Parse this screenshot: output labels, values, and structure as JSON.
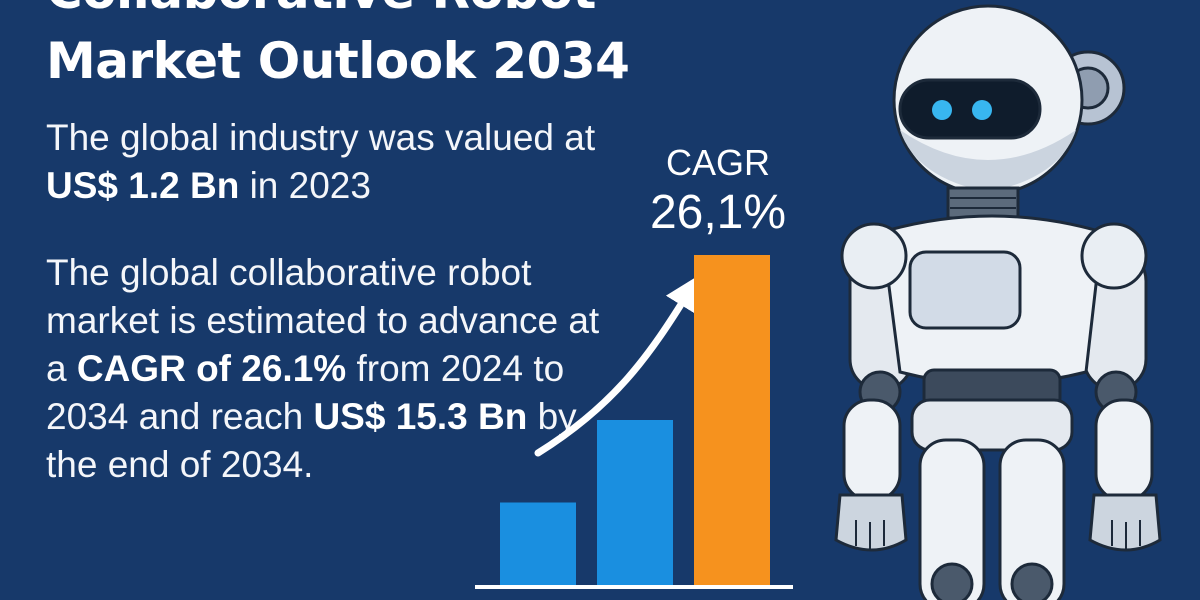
{
  "header": {
    "title_line1": "Collaborative Robot",
    "title_line2": "Market Outlook 2034"
  },
  "intro": {
    "part1": "The global industry was valued at ",
    "value": "US$ 1.2 Bn",
    "part2": " in 2023"
  },
  "forecast": {
    "part1": "The global collaborative robot market is estimated to advance at a ",
    "cagr_text": "CAGR of 26.1%",
    "part2": " from 2024 to 2034 and reach ",
    "value": "US$ 15.3 Bn",
    "part3": " by the end of 2034."
  },
  "colors": {
    "background": "#17396a",
    "bar_blue": "#1a8fe0",
    "bar_orange": "#f6921e",
    "text": "#ffffff"
  },
  "icons": [
    "trend-arrow-icon",
    "robot-illustration"
  ],
  "chart_data": {
    "type": "bar",
    "categories": [
      "",
      "",
      ""
    ],
    "values": [
      1,
      2,
      4
    ],
    "bar_colors": [
      "#1a8fe0",
      "#1a8fe0",
      "#f6921e"
    ],
    "annotation_label": "CAGR",
    "annotation_value": "26,1%",
    "title": "",
    "xlabel": "",
    "ylabel": "",
    "ylim": [
      0,
      4
    ],
    "grid": false,
    "legend": false
  }
}
